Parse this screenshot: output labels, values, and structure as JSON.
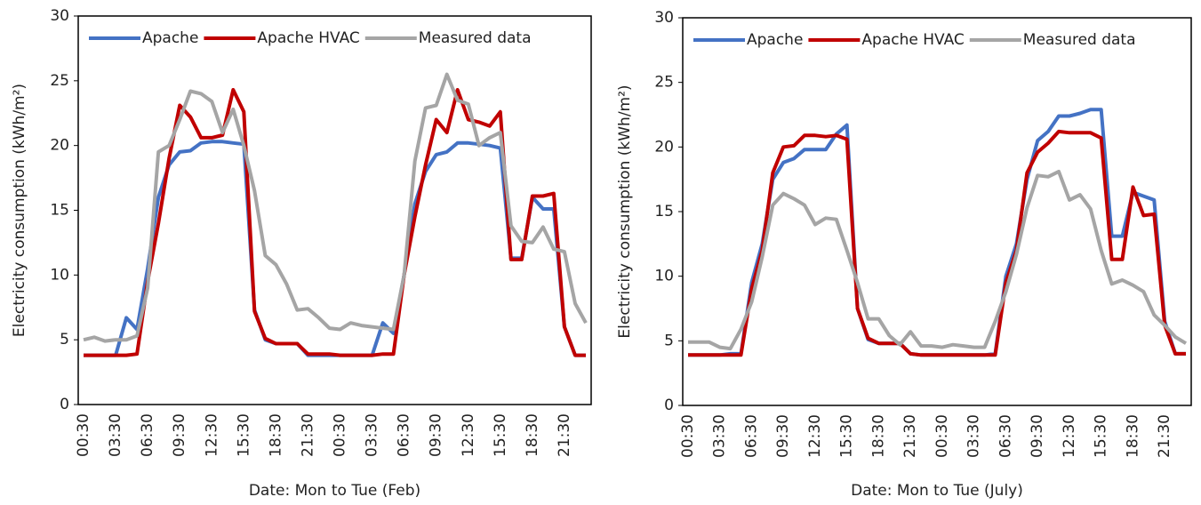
{
  "chart_data": [
    {
      "type": "line",
      "x_label": "Date: Mon to Tue (Feb)",
      "y_label": "Electricity consumption (kWh/m²)",
      "categories": [
        "00:30",
        null,
        null,
        "03:30",
        null,
        null,
        "06:30",
        null,
        null,
        "09:30",
        null,
        null,
        "12:30",
        null,
        null,
        "15:30",
        null,
        null,
        "18:30",
        null,
        null,
        "21:30",
        null,
        null,
        "00:30",
        null,
        null,
        "03:30",
        null,
        null,
        "06:30",
        null,
        null,
        "09:30",
        null,
        null,
        "12:30",
        null,
        null,
        "15:30",
        null,
        null,
        "18:30",
        null,
        null,
        "21:30",
        null,
        null
      ],
      "ylim": [
        0,
        30
      ],
      "yticks": [
        0,
        5,
        10,
        15,
        20,
        25,
        30
      ],
      "legend": "top",
      "series": [
        {
          "name": "Apache",
          "color": "#4472c4",
          "values": [
            3.8,
            3.8,
            3.8,
            3.8,
            6.7,
            5.8,
            10.5,
            16,
            18.5,
            19.5,
            19.6,
            20.2,
            20.3,
            20.3,
            20.2,
            20.1,
            7.3,
            5.0,
            4.7,
            4.7,
            4.7,
            3.8,
            3.8,
            3.8,
            3.8,
            3.8,
            3.8,
            3.8,
            6.3,
            5.5,
            10,
            15.5,
            18,
            19.3,
            19.5,
            20.2,
            20.2,
            20.1,
            20,
            19.8,
            11.3,
            11.3,
            16,
            15.1,
            15.1,
            6,
            3.8,
            3.8
          ]
        },
        {
          "name": "Apache HVAC",
          "color": "#c00000",
          "values": [
            3.8,
            3.8,
            3.8,
            3.8,
            3.8,
            3.9,
            9.5,
            14,
            19,
            23.1,
            22.2,
            20.6,
            20.6,
            20.8,
            24.3,
            22.6,
            7.2,
            5.1,
            4.7,
            4.7,
            4.7,
            3.9,
            3.9,
            3.9,
            3.8,
            3.8,
            3.8,
            3.8,
            3.9,
            3.9,
            10,
            14.5,
            18.5,
            22,
            21,
            24.3,
            22,
            21.8,
            21.5,
            22.6,
            11.2,
            11.2,
            16.1,
            16.1,
            16.3,
            6,
            3.8,
            3.8
          ]
        },
        {
          "name": "Measured data",
          "color": "#a5a5a5",
          "values": [
            5.0,
            5.2,
            4.9,
            5.0,
            5.0,
            5.3,
            9,
            19.5,
            20,
            22,
            24.2,
            24,
            23.4,
            21,
            22.8,
            20,
            16.5,
            11.5,
            10.8,
            9.3,
            7.3,
            7.4,
            6.7,
            5.9,
            5.8,
            6.3,
            6.1,
            6.0,
            5.9,
            5.8,
            10,
            18.8,
            22.9,
            23.1,
            25.5,
            23.5,
            23.2,
            20,
            20.6,
            21,
            13.8,
            12.6,
            12.5,
            13.7,
            12,
            11.8,
            7.8,
            6.3
          ]
        }
      ]
    },
    {
      "type": "line",
      "x_label": "Date: Mon to Tue (July)",
      "y_label": "Electricity consumption (kWh/m²)",
      "categories": [
        "00:30",
        null,
        null,
        "03:30",
        null,
        null,
        "06:30",
        null,
        null,
        "09:30",
        null,
        null,
        "12:30",
        null,
        null,
        "15:30",
        null,
        null,
        "18:30",
        null,
        null,
        "21:30",
        null,
        null,
        "00:30",
        null,
        null,
        "03:30",
        null,
        null,
        "06:30",
        null,
        null,
        "09:30",
        null,
        null,
        "12:30",
        null,
        null,
        "15:30",
        null,
        null,
        "18:30",
        null,
        null,
        "21:30",
        null,
        null
      ],
      "ylim": [
        0,
        30
      ],
      "yticks": [
        0,
        5,
        10,
        15,
        20,
        25,
        30
      ],
      "legend": "top",
      "series": [
        {
          "name": "Apache",
          "color": "#4472c4",
          "values": [
            3.9,
            3.9,
            3.9,
            3.9,
            4.0,
            4.0,
            9.5,
            12.5,
            17.5,
            18.8,
            19.1,
            19.8,
            19.8,
            19.8,
            21,
            21.7,
            7.5,
            5.1,
            4.8,
            4.8,
            4.8,
            4.0,
            3.9,
            3.9,
            3.9,
            3.9,
            3.9,
            3.9,
            3.9,
            4.0,
            10,
            12.5,
            17.5,
            20.5,
            21.2,
            22.4,
            22.4,
            22.6,
            22.9,
            22.9,
            13.1,
            13.1,
            16.5,
            16.2,
            15.9,
            6.5,
            4.0,
            4.0
          ]
        },
        {
          "name": "Apache HVAC",
          "color": "#c00000",
          "values": [
            3.9,
            3.9,
            3.9,
            3.9,
            3.9,
            3.9,
            9,
            12,
            18,
            20,
            20.1,
            20.9,
            20.9,
            20.8,
            20.9,
            20.6,
            7.5,
            5.2,
            4.8,
            4.8,
            4.8,
            4.0,
            3.9,
            3.9,
            3.9,
            3.9,
            3.9,
            3.9,
            3.9,
            3.9,
            9.5,
            12,
            18,
            19.6,
            20.3,
            21.2,
            21.1,
            21.1,
            21.1,
            20.7,
            11.3,
            11.3,
            16.9,
            14.7,
            14.8,
            6.2,
            4.0,
            4.0
          ]
        },
        {
          "name": "Measured data",
          "color": "#a5a5a5",
          "values": [
            4.9,
            4.9,
            4.9,
            4.5,
            4.4,
            5.9,
            8,
            11.5,
            15.5,
            16.4,
            16,
            15.5,
            14.0,
            14.5,
            14.4,
            12,
            9.5,
            6.7,
            6.7,
            5.4,
            4.7,
            5.7,
            4.6,
            4.6,
            4.5,
            4.7,
            4.6,
            4.5,
            4.5,
            6.5,
            8.8,
            11.7,
            15.3,
            17.8,
            17.7,
            18.1,
            15.9,
            16.3,
            15.2,
            12,
            9.4,
            9.7,
            9.3,
            8.8,
            7,
            6.2,
            5.3,
            4.8
          ]
        }
      ]
    }
  ]
}
